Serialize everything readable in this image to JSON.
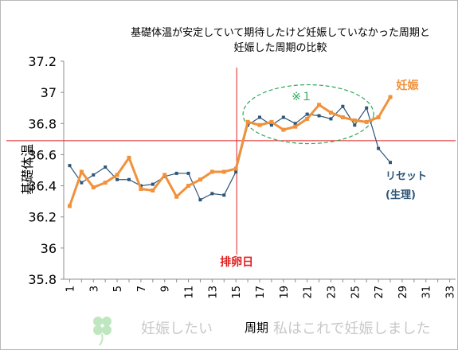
{
  "chart_data": {
    "type": "line",
    "title": "基礎体温が安定していて期待したけど妊娠していなかった周期と妊娠した周期の比較",
    "title_lines": [
      "基礎体温が安定していて期待したけど妊娠していなかった周期と",
      "妊娠した周期の比較"
    ],
    "ylabel": "基礎体温",
    "xlabel": "周期",
    "ylim": [
      35.8,
      37.2
    ],
    "yticks": [
      "35.8",
      "36",
      "36.2",
      "36.4",
      "36.6",
      "36.8",
      "37",
      "37.2"
    ],
    "xlim": [
      1,
      33
    ],
    "xticks": [
      "1",
      "3",
      "5",
      "7",
      "9",
      "11",
      "13",
      "15",
      "17",
      "19",
      "21",
      "23",
      "25",
      "27",
      "29",
      "31",
      "33"
    ],
    "grid": false,
    "series": [
      {
        "name": "妊娠",
        "label": "妊娠",
        "color": "#F0923C",
        "x": [
          1,
          2,
          3,
          4,
          5,
          6,
          7,
          8,
          9,
          10,
          11,
          12,
          13,
          14,
          15,
          16,
          17,
          18,
          19,
          20,
          21,
          22,
          23,
          24,
          25,
          26,
          27,
          28
        ],
        "values": [
          36.27,
          36.49,
          36.39,
          36.42,
          36.47,
          36.58,
          36.38,
          36.37,
          36.47,
          36.33,
          36.4,
          36.44,
          36.49,
          36.49,
          36.51,
          36.81,
          36.79,
          36.81,
          36.76,
          36.78,
          36.83,
          36.92,
          36.87,
          36.84,
          36.82,
          36.81,
          36.84,
          36.97
        ]
      },
      {
        "name": "リセット(生理)",
        "label_lines": [
          "リセット",
          "(生理)"
        ],
        "color": "#2E5678",
        "x": [
          1,
          2,
          3,
          4,
          5,
          6,
          7,
          8,
          9,
          10,
          11,
          12,
          13,
          14,
          15,
          16,
          17,
          18,
          19,
          20,
          21,
          22,
          23,
          24,
          25,
          26,
          27,
          28
        ],
        "values": [
          36.53,
          36.42,
          36.47,
          36.52,
          36.44,
          36.44,
          36.4,
          36.41,
          36.46,
          36.48,
          36.48,
          36.31,
          36.35,
          36.34,
          36.49,
          36.79,
          36.84,
          36.79,
          36.84,
          36.8,
          36.86,
          36.85,
          36.83,
          36.91,
          36.79,
          36.9,
          36.64,
          36.55
        ]
      }
    ],
    "reference_lines": {
      "horizontal_y": 36.69,
      "vertical_x": 15,
      "color": "#E02020"
    },
    "annotations": {
      "ovulation_label": "排卵日",
      "note_marker": "※１",
      "watermark_left": "妊娠したい",
      "watermark_right": "私はこれで妊娠しました"
    }
  }
}
